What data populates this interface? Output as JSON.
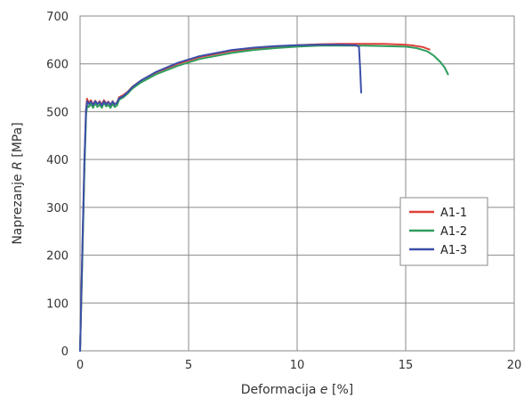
{
  "chart_data": {
    "type": "line",
    "title": "",
    "xlabel": {
      "prefix": "Deformacija ",
      "symbol": "e",
      "unit": " [%]"
    },
    "ylabel": {
      "prefix": "Naprezanje ",
      "symbol": "R",
      "unit": " [MPa]"
    },
    "xlim": [
      0,
      20
    ],
    "ylim": [
      0,
      700
    ],
    "x_ticks": [
      "0",
      "5",
      "10",
      "15",
      "20"
    ],
    "y_ticks": [
      "0",
      "100",
      "200",
      "300",
      "400",
      "500",
      "600",
      "700"
    ],
    "grid": true,
    "legend_position": "right",
    "series": [
      {
        "name": "A1-1",
        "color": "#e0413a",
        "x": [
          0,
          0.1,
          0.2,
          0.27,
          0.32,
          0.4,
          0.5,
          0.6,
          0.7,
          0.8,
          0.9,
          1.0,
          1.1,
          1.2,
          1.3,
          1.4,
          1.5,
          1.6,
          1.7,
          1.8,
          2.0,
          2.2,
          2.4,
          2.8,
          3.5,
          4.5,
          5.5,
          7,
          8,
          9,
          10,
          11,
          12,
          13,
          14,
          14.5,
          15,
          15.4,
          15.8,
          16.1
        ],
        "y": [
          0,
          190,
          390,
          500,
          527,
          518,
          524,
          515,
          523,
          516,
          522,
          515,
          524,
          517,
          521,
          514,
          522,
          515,
          519,
          530,
          535,
          542,
          552,
          565,
          582,
          600,
          614,
          627,
          632,
          636,
          639,
          641,
          642,
          642,
          642,
          641,
          640,
          638,
          635,
          630
        ]
      },
      {
        "name": "A1-2",
        "color": "#2e9e5c",
        "x": [
          0,
          0.1,
          0.2,
          0.28,
          0.33,
          0.4,
          0.5,
          0.6,
          0.7,
          0.8,
          0.9,
          1.0,
          1.1,
          1.2,
          1.3,
          1.4,
          1.5,
          1.6,
          1.7,
          1.8,
          2.0,
          2.2,
          2.4,
          2.8,
          3.5,
          4.5,
          5.5,
          7,
          8,
          9,
          10,
          11,
          12,
          13,
          14,
          15,
          15.5,
          16,
          16.3,
          16.6,
          16.8,
          16.95
        ],
        "y": [
          0,
          180,
          380,
          495,
          513,
          510,
          516,
          508,
          518,
          510,
          515,
          508,
          519,
          511,
          514,
          508,
          516,
          510,
          513,
          525,
          530,
          538,
          548,
          561,
          578,
          596,
          610,
          623,
          629,
          633,
          636,
          638,
          638,
          638,
          637,
          636,
          633,
          626,
          617,
          604,
          592,
          578
        ]
      },
      {
        "name": "A1-3",
        "color": "#3b4fa8",
        "x": [
          0,
          0.1,
          0.2,
          0.28,
          0.33,
          0.4,
          0.5,
          0.6,
          0.7,
          0.8,
          0.9,
          1.0,
          1.1,
          1.2,
          1.3,
          1.4,
          1.5,
          1.6,
          1.7,
          1.8,
          2.0,
          2.2,
          2.4,
          2.8,
          3.5,
          4.5,
          5.5,
          7,
          8,
          9,
          10,
          11,
          12,
          12.7,
          12.85,
          12.9,
          12.95
        ],
        "y": [
          0,
          200,
          400,
          505,
          522,
          516,
          521,
          514,
          522,
          516,
          520,
          513,
          522,
          515,
          520,
          514,
          521,
          515,
          519,
          528,
          533,
          541,
          551,
          565,
          583,
          602,
          616,
          629,
          634,
          637,
          639,
          640,
          640,
          639,
          636,
          590,
          540
        ]
      }
    ]
  }
}
